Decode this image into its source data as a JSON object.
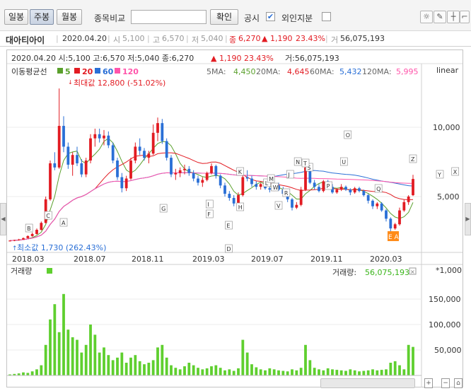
{
  "toolbar": {
    "daily": "일봉",
    "weekly": "주봉",
    "monthly": "월봉",
    "compare_label": "종목비교",
    "compare_value": "",
    "confirm": "확인",
    "disclosure": "공시",
    "disclosure_checked": "✔",
    "foreign": "외인지분",
    "foreign_checked": ""
  },
  "info": {
    "name": "대아티아이",
    "date": "2020.04.20",
    "open": "5,100",
    "high": "6,570",
    "low": "5,040",
    "close": "6,270",
    "change": "▲ 1,190",
    "change_pct": "23.43%",
    "volume": "56,075,193"
  },
  "chart": {
    "header_line": "2020.04.20 시:5,100 고:6,570 저:5,040 종:6,270",
    "header_change": "▲  1,190  23.43%",
    "header_volume": "거:56,075,193",
    "ma_title": "이동평균선",
    "ma_legend": [
      {
        "label": "5",
        "color": "#5aa02c"
      },
      {
        "label": "20",
        "color": "#e21b22"
      },
      {
        "label": "60",
        "color": "#2a6fd6"
      },
      {
        "label": "120",
        "color": "#ff55aa"
      }
    ],
    "ma_values": [
      {
        "name": "5MA:",
        "value": "4,450",
        "color": "#5aa02c"
      },
      {
        "name": "20MA:",
        "value": "4,645",
        "color": "#e21b22"
      },
      {
        "name": "60MA:",
        "value": "5,432",
        "color": "#2a6fd6"
      },
      {
        "name": "120MA:",
        "value": "5,995",
        "color": "#ff55aa"
      }
    ],
    "scale_mode": "linear",
    "max_note": "최대값 12,800 (-51.02%)",
    "min_note": "최소값 1,730 (262.43%)",
    "price_ticks": [
      "10,000",
      "5,000"
    ],
    "date_ticks": [
      "2018.03",
      "2018.07",
      "2018.11",
      "2019.03",
      "2019.07",
      "2019.11",
      "2020.03"
    ],
    "volume_title": "거래량",
    "volume_label": "거래량:",
    "volume_value": "56,075,193",
    "volume_unit": "*1,000",
    "volume_ticks": [
      "150,000",
      "100,000",
      "50,000"
    ],
    "disclosure_label": "E A",
    "colors": {
      "up": "#e21b22",
      "down": "#2a6fd6",
      "volume": "#5fcf2f"
    }
  },
  "chart_data": {
    "type": "candlestick",
    "price_axis": {
      "ticks": [
        5000,
        10000
      ],
      "scale": "linear"
    },
    "volume_axis": {
      "ticks": [
        50000,
        100000,
        150000
      ],
      "unit": "*1,000"
    },
    "date_labels": [
      "2018.03",
      "2018.07",
      "2018.11",
      "2019.03",
      "2019.07",
      "2019.11",
      "2020.03"
    ],
    "markers": [
      "A",
      "B",
      "C",
      "D",
      "E",
      "F",
      "G",
      "H",
      "I",
      "J",
      "K",
      "L",
      "M",
      "N",
      "O",
      "P",
      "Q",
      "R",
      "S",
      "T",
      "U",
      "V",
      "W",
      "X",
      "Y",
      "Z"
    ],
    "candles": [
      [
        1800,
        1850,
        1760,
        1820
      ],
      [
        1820,
        1880,
        1780,
        1860
      ],
      [
        1860,
        1950,
        1820,
        1900
      ],
      [
        1900,
        2050,
        1880,
        2000
      ],
      [
        2000,
        2200,
        1950,
        2150
      ],
      [
        2150,
        2400,
        2100,
        2300
      ],
      [
        2300,
        2700,
        2250,
        2600
      ],
      [
        2600,
        3200,
        2550,
        3100
      ],
      [
        3100,
        5000,
        3050,
        4800
      ],
      [
        4800,
        7600,
        4700,
        7400
      ],
      [
        7400,
        8200,
        6900,
        7100
      ],
      [
        7100,
        12800,
        7000,
        10100
      ],
      [
        10100,
        10800,
        8200,
        8600
      ],
      [
        8600,
        8900,
        7000,
        7300
      ],
      [
        7300,
        8200,
        6500,
        8000
      ],
      [
        8000,
        8600,
        7200,
        7400
      ],
      [
        7400,
        7700,
        6400,
        6600
      ],
      [
        6600,
        7800,
        6400,
        7600
      ],
      [
        7600,
        9500,
        7400,
        9200
      ],
      [
        9200,
        9900,
        8600,
        9500
      ],
      [
        9500,
        9900,
        8900,
        9200
      ],
      [
        9200,
        9800,
        8700,
        9400
      ],
      [
        9400,
        9700,
        8500,
        8700
      ],
      [
        8700,
        8900,
        7400,
        7600
      ],
      [
        7600,
        7800,
        6200,
        6400
      ],
      [
        6400,
        6700,
        5300,
        5600
      ],
      [
        5600,
        6500,
        5400,
        6300
      ],
      [
        6300,
        7800,
        6200,
        7600
      ],
      [
        7600,
        8900,
        7400,
        8600
      ],
      [
        8600,
        9200,
        8000,
        8300
      ],
      [
        8300,
        8500,
        7600,
        7800
      ],
      [
        7800,
        8300,
        7400,
        8100
      ],
      [
        8100,
        10200,
        8000,
        9600
      ],
      [
        9600,
        10700,
        9000,
        10300
      ],
      [
        10300,
        10600,
        8800,
        9000
      ],
      [
        9000,
        9200,
        7600,
        7800
      ],
      [
        7800,
        8000,
        6400,
        6600
      ],
      [
        6600,
        7000,
        6200,
        6700
      ],
      [
        6700,
        7100,
        6400,
        6900
      ],
      [
        6900,
        7300,
        6600,
        7000
      ],
      [
        7000,
        7200,
        6500,
        6700
      ],
      [
        6700,
        6900,
        6100,
        6300
      ],
      [
        6300,
        6500,
        5800,
        6000
      ],
      [
        6000,
        6400,
        5700,
        6200
      ],
      [
        6200,
        6800,
        6100,
        6700
      ],
      [
        6700,
        7400,
        6600,
        7200
      ],
      [
        7200,
        7300,
        6300,
        6500
      ],
      [
        6500,
        6600,
        5600,
        5800
      ],
      [
        5800,
        6000,
        5000,
        5200
      ],
      [
        5200,
        5400,
        4700,
        4900
      ],
      [
        4900,
        5100,
        4300,
        4500
      ],
      [
        4500,
        5300,
        4400,
        5100
      ],
      [
        5100,
        6600,
        5000,
        6400
      ],
      [
        6400,
        6900,
        6100,
        6300
      ],
      [
        6300,
        6500,
        5700,
        5900
      ],
      [
        5900,
        6100,
        5500,
        5700
      ],
      [
        5700,
        6000,
        5500,
        5900
      ],
      [
        5900,
        6100,
        5500,
        5600
      ],
      [
        5600,
        5800,
        5300,
        5500
      ],
      [
        5500,
        5900,
        5400,
        5800
      ],
      [
        5800,
        6000,
        5400,
        5500
      ],
      [
        5500,
        5700,
        5000,
        5200
      ],
      [
        5200,
        5300,
        4600,
        4800
      ],
      [
        4800,
        4900,
        4000,
        4200
      ],
      [
        4200,
        4600,
        4100,
        4400
      ],
      [
        4400,
        5700,
        4300,
        5500
      ],
      [
        5500,
        7400,
        5400,
        7100
      ],
      [
        7100,
        7300,
        5900,
        6000
      ],
      [
        6000,
        6200,
        5500,
        5700
      ],
      [
        5700,
        5900,
        5300,
        5400
      ],
      [
        5400,
        6200,
        5300,
        6100
      ],
      [
        6100,
        6200,
        5600,
        5700
      ],
      [
        5700,
        5900,
        5200,
        5300
      ],
      [
        5300,
        5600,
        5200,
        5500
      ],
      [
        5500,
        5900,
        5400,
        5700
      ],
      [
        5700,
        5800,
        5400,
        5500
      ],
      [
        5500,
        5600,
        5100,
        5300
      ],
      [
        5300,
        5700,
        5200,
        5600
      ],
      [
        5600,
        5700,
        5300,
        5400
      ],
      [
        5400,
        5500,
        5000,
        5100
      ],
      [
        5100,
        5200,
        4500,
        4700
      ],
      [
        4700,
        4800,
        4100,
        4300
      ],
      [
        4300,
        4600,
        4100,
        4500
      ],
      [
        4500,
        4600,
        3900,
        4000
      ],
      [
        4000,
        4100,
        3200,
        3400
      ],
      [
        3400,
        3500,
        2500,
        2700
      ],
      [
        2700,
        3100,
        2600,
        3000
      ],
      [
        3000,
        4200,
        2900,
        4000
      ],
      [
        4000,
        4800,
        3900,
        4600
      ],
      [
        4600,
        5100,
        4400,
        5000
      ],
      [
        5100,
        6570,
        5040,
        6270
      ]
    ],
    "volumes": [
      2000,
      3000,
      4000,
      6000,
      5000,
      8000,
      12000,
      20000,
      60000,
      110000,
      140000,
      85000,
      160000,
      90000,
      75000,
      70000,
      45000,
      60000,
      100000,
      80000,
      45000,
      55000,
      40000,
      30000,
      35000,
      45000,
      25000,
      35000,
      40000,
      28000,
      22000,
      25000,
      30000,
      55000,
      60000,
      35000,
      20000,
      15000,
      12000,
      18000,
      25000,
      20000,
      15000,
      12000,
      14000,
      18000,
      20000,
      15000,
      10000,
      12000,
      9000,
      14000,
      70000,
      45000,
      22000,
      16000,
      12000,
      10000,
      14000,
      12000,
      10000,
      9000,
      8000,
      12000,
      10000,
      15000,
      60000,
      30000,
      15000,
      12000,
      10000,
      14000,
      12000,
      11000,
      10000,
      9000,
      12000,
      10000,
      8000,
      9000,
      10000,
      12000,
      10000,
      11000,
      12000,
      25000,
      28000,
      20000,
      12000,
      60000,
      56075
    ]
  }
}
